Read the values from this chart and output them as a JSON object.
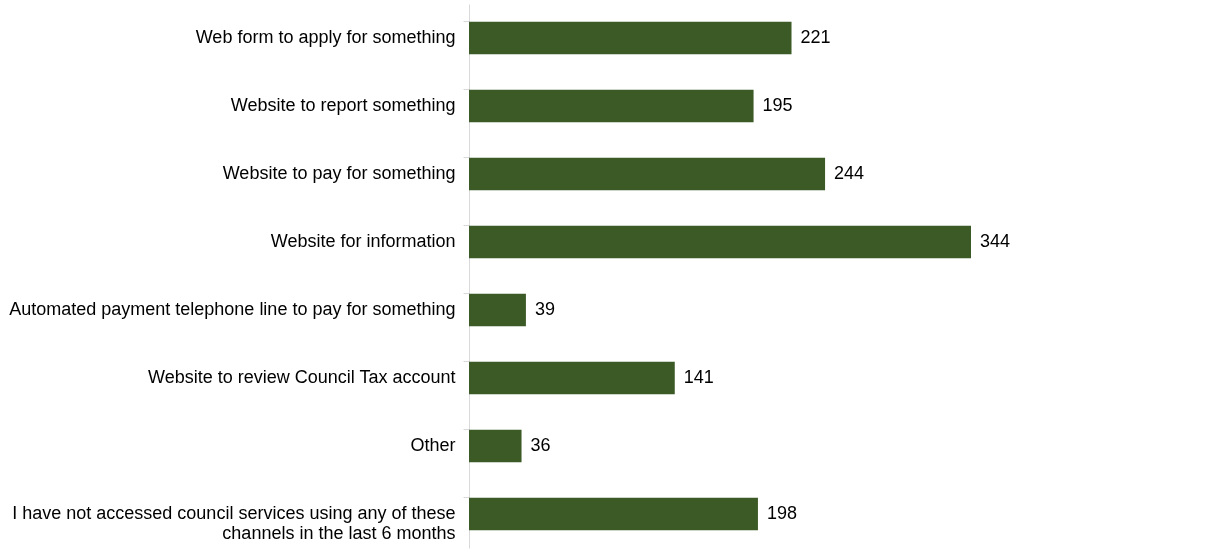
{
  "chart_data": {
    "type": "bar",
    "orientation": "horizontal",
    "data_labels": true,
    "color": "#3b5a25",
    "categories": [
      "Web form to apply for something",
      "Website to report something",
      "Website to pay for something",
      "Website for information",
      "Automated payment telephone line to pay for something",
      "Website to review Council Tax account",
      "Other",
      "I have not accessed council services using any of these channels in the last 6 months"
    ],
    "values": [
      221,
      195,
      244,
      344,
      39,
      141,
      36,
      198
    ]
  }
}
